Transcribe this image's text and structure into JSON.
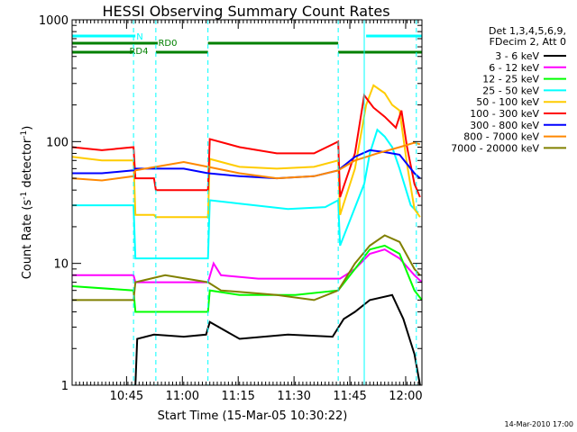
{
  "chart_data": {
    "type": "line",
    "title": "HESSI Observing Summary Count Rates",
    "xlabel": "Start Time (15-Mar-05 10:30:22)",
    "ylabel_main": "Count Rate (s",
    "ylabel_sup1": "-1",
    "ylabel_mid": " detector",
    "ylabel_sup2": "-1",
    "ylabel_end": ")",
    "yscale": "log",
    "ylim": [
      1,
      1000
    ],
    "xlim_minutes": [
      0,
      94
    ],
    "ytick_values": [
      1,
      10,
      100,
      1000
    ],
    "ytick_labels": [
      "1",
      "10",
      "100",
      "1000"
    ],
    "xtick_values": [
      14.63,
      29.63,
      44.63,
      59.63,
      74.63,
      89.63
    ],
    "xtick_labels": [
      "10:45",
      "11:00",
      "11:15",
      "11:30",
      "11:45",
      "12:00"
    ],
    "legend_header": [
      "Det 1,3,4,5,6,9,",
      "FDecim 2, Att 0"
    ],
    "timestamp": "14-Mar-2010 17:00",
    "flag_labels": {
      "n": "N",
      "rd0": "RD0",
      "rd4": "RD4"
    },
    "flags": {
      "n": [
        [
          0,
          17
        ],
        [
          79,
          94
        ]
      ],
      "rd0": [
        [
          0,
          23
        ],
        [
          36.5,
          71.5
        ]
      ],
      "rd4": [
        [
          0,
          16.5
        ],
        [
          22.5,
          36.5
        ],
        [
          71.5,
          94
        ]
      ]
    },
    "colors": {
      "n": "#00ffff",
      "rd": "#008000",
      "vlines": "#00ffff"
    },
    "vlines_solid": [
      0,
      78.5
    ],
    "vlines_dashed": [
      16.5,
      22.5,
      36.5,
      71.5,
      92.5
    ],
    "series": [
      {
        "name": "3 - 6 keV",
        "color": "#000000",
        "points": [
          [
            17,
            1
          ],
          [
            17.5,
            2.4
          ],
          [
            22,
            2.6
          ],
          [
            30,
            2.5
          ],
          [
            36,
            2.6
          ],
          [
            37,
            3.3
          ],
          [
            45,
            2.4
          ],
          [
            58,
            2.6
          ],
          [
            70,
            2.5
          ],
          [
            73,
            3.5
          ],
          [
            76,
            4.0
          ],
          [
            80,
            5.0
          ],
          [
            86,
            5.5
          ],
          [
            89,
            3.5
          ],
          [
            92,
            1.8
          ],
          [
            93.5,
            1
          ]
        ]
      },
      {
        "name": "6 - 12 keV",
        "color": "#ff00ff",
        "points": [
          [
            0,
            8
          ],
          [
            16.5,
            8
          ],
          [
            17,
            7
          ],
          [
            22,
            7
          ],
          [
            30,
            7
          ],
          [
            36.5,
            7
          ],
          [
            38,
            10
          ],
          [
            40,
            8
          ],
          [
            50,
            7.5
          ],
          [
            65,
            7.5
          ],
          [
            72,
            7.5
          ],
          [
            76,
            9
          ],
          [
            80,
            12
          ],
          [
            84,
            13
          ],
          [
            88,
            11
          ],
          [
            92,
            8
          ],
          [
            94,
            7
          ]
        ]
      },
      {
        "name": "12 - 25 keV",
        "color": "#00ff00",
        "points": [
          [
            0,
            6.5
          ],
          [
            16.5,
            6
          ],
          [
            17,
            4
          ],
          [
            22,
            4
          ],
          [
            30,
            4
          ],
          [
            36.5,
            4
          ],
          [
            37,
            6
          ],
          [
            45,
            5.5
          ],
          [
            60,
            5.5
          ],
          [
            71.5,
            6
          ],
          [
            76,
            9
          ],
          [
            80,
            13
          ],
          [
            84,
            14
          ],
          [
            88,
            12
          ],
          [
            92,
            6
          ],
          [
            94,
            5
          ]
        ]
      },
      {
        "name": "25 - 50 keV",
        "color": "#00ffff",
        "points": [
          [
            0,
            30
          ],
          [
            16.5,
            30
          ],
          [
            17,
            11
          ],
          [
            22,
            11
          ],
          [
            36.5,
            11
          ],
          [
            37,
            33
          ],
          [
            45,
            31
          ],
          [
            58,
            28
          ],
          [
            68,
            29
          ],
          [
            71.5,
            33
          ],
          [
            72,
            14
          ],
          [
            78.5,
            45
          ],
          [
            80,
            80
          ],
          [
            82,
            125
          ],
          [
            84,
            110
          ],
          [
            86,
            90
          ],
          [
            88,
            60
          ],
          [
            91,
            30
          ],
          [
            93,
            26
          ]
        ]
      },
      {
        "name": "50 - 100 keV",
        "color": "#ffcc00",
        "points": [
          [
            0,
            75
          ],
          [
            8,
            70
          ],
          [
            16.5,
            70
          ],
          [
            17,
            25
          ],
          [
            22,
            25
          ],
          [
            22.5,
            24
          ],
          [
            36.5,
            24
          ],
          [
            37,
            72
          ],
          [
            45,
            62
          ],
          [
            55,
            60
          ],
          [
            65,
            62
          ],
          [
            71.5,
            70
          ],
          [
            72,
            25
          ],
          [
            76,
            60
          ],
          [
            79,
            200
          ],
          [
            81,
            290
          ],
          [
            84,
            250
          ],
          [
            86,
            200
          ],
          [
            88,
            180
          ],
          [
            90,
            65
          ],
          [
            92,
            28
          ],
          [
            93.5,
            24
          ]
        ]
      },
      {
        "name": "100 - 300 keV",
        "color": "#ff0000",
        "points": [
          [
            0,
            90
          ],
          [
            8,
            85
          ],
          [
            16.5,
            90
          ],
          [
            17,
            50
          ],
          [
            22,
            50
          ],
          [
            22.5,
            40
          ],
          [
            36.5,
            40
          ],
          [
            37,
            105
          ],
          [
            45,
            90
          ],
          [
            55,
            80
          ],
          [
            65,
            80
          ],
          [
            71.5,
            100
          ],
          [
            72,
            35
          ],
          [
            76,
            80
          ],
          [
            78.5,
            240
          ],
          [
            81,
            190
          ],
          [
            84,
            160
          ],
          [
            87,
            130
          ],
          [
            88.5,
            180
          ],
          [
            90,
            90
          ],
          [
            92,
            45
          ],
          [
            93.5,
            35
          ]
        ]
      },
      {
        "name": "300 - 800 keV",
        "color": "#0000ff",
        "points": [
          [
            0,
            55
          ],
          [
            8,
            55
          ],
          [
            16.5,
            58
          ],
          [
            17,
            60
          ],
          [
            30,
            60
          ],
          [
            36.5,
            55
          ],
          [
            45,
            52
          ],
          [
            55,
            50
          ],
          [
            65,
            52
          ],
          [
            71.5,
            58
          ],
          [
            76,
            75
          ],
          [
            80,
            85
          ],
          [
            84,
            82
          ],
          [
            88,
            78
          ],
          [
            92,
            55
          ],
          [
            93.5,
            50
          ]
        ]
      },
      {
        "name": "800 - 7000 keV",
        "color": "#ff8800",
        "points": [
          [
            0,
            50
          ],
          [
            8,
            48
          ],
          [
            16.5,
            52
          ],
          [
            17,
            58
          ],
          [
            30,
            68
          ],
          [
            36.5,
            62
          ],
          [
            45,
            55
          ],
          [
            55,
            50
          ],
          [
            65,
            52
          ],
          [
            71.5,
            58
          ],
          [
            76,
            70
          ],
          [
            82,
            80
          ],
          [
            88,
            90
          ],
          [
            92,
            98
          ],
          [
            93.5,
            95
          ]
        ]
      },
      {
        "name": "7000 - 20000 keV",
        "color": "#808000",
        "points": [
          [
            0,
            5
          ],
          [
            16.5,
            5
          ],
          [
            17,
            7
          ],
          [
            25,
            8
          ],
          [
            36.5,
            7
          ],
          [
            40,
            6
          ],
          [
            55,
            5.5
          ],
          [
            65,
            5
          ],
          [
            71.5,
            6
          ],
          [
            76,
            10
          ],
          [
            80,
            14
          ],
          [
            84,
            17
          ],
          [
            88,
            15
          ],
          [
            92,
            9
          ],
          [
            93.5,
            8
          ]
        ]
      }
    ]
  }
}
